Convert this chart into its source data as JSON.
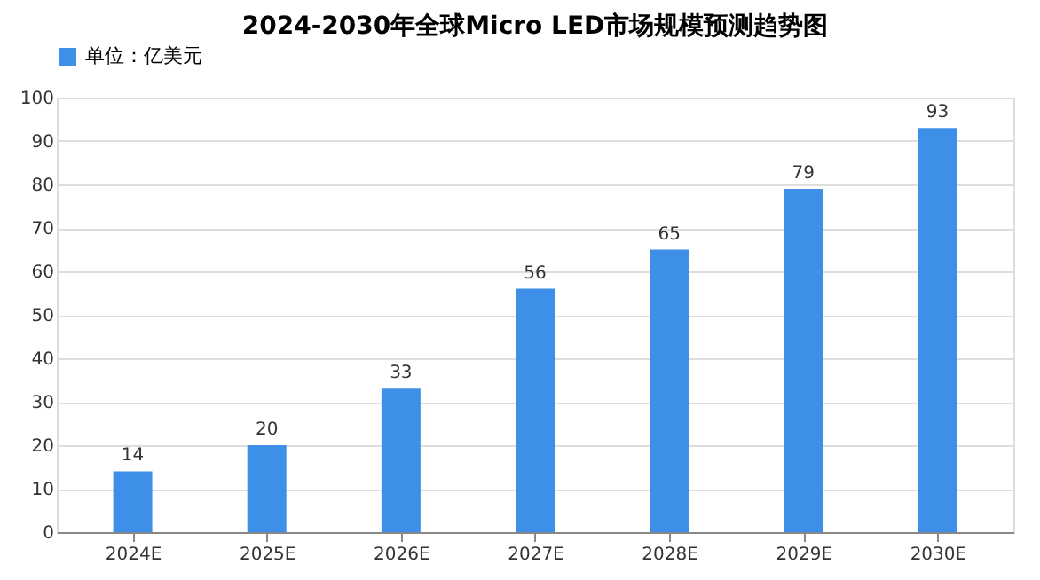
{
  "chart_data": {
    "type": "bar",
    "title": "2024-2030年全球Micro LED市场规模预测趋势图",
    "categories": [
      "2024E",
      "2025E",
      "2026E",
      "2027E",
      "2028E",
      "2029E",
      "2030E"
    ],
    "series": [
      {
        "name": "单位：亿美元",
        "color": "#3d8fe8",
        "values": [
          14,
          20,
          33,
          56,
          65,
          79,
          93
        ]
      }
    ],
    "ylim": [
      0,
      100
    ],
    "yticks": [
      0,
      10,
      20,
      30,
      40,
      50,
      60,
      70,
      80,
      90,
      100
    ],
    "grid": "y",
    "legend": "top",
    "data_labels": true
  }
}
